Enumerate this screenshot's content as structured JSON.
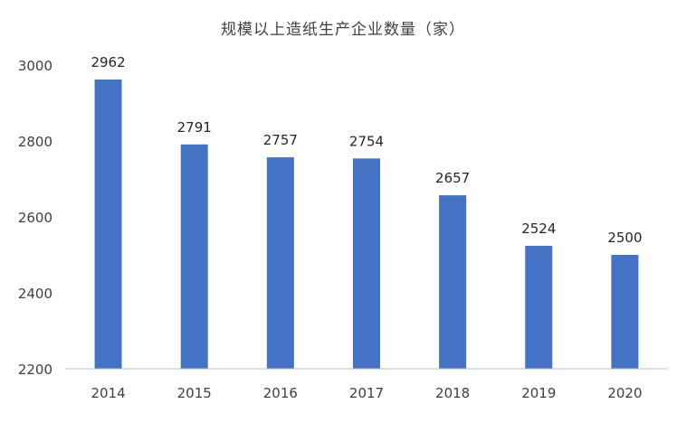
{
  "chart_data": {
    "type": "bar",
    "title": "规模以上造纸生产企业数量（家）",
    "categories": [
      "2014",
      "2015",
      "2016",
      "2017",
      "2018",
      "2019",
      "2020"
    ],
    "values": [
      2962,
      2791,
      2757,
      2754,
      2657,
      2524,
      2500
    ],
    "ylim": [
      2200,
      3000
    ],
    "yticks": [
      "2200",
      "2400",
      "2600",
      "2800",
      "3000"
    ],
    "xlabel": "",
    "ylabel": "",
    "grid": false,
    "legend": "none",
    "bar_color": "#4472C4",
    "axis_color": "#bfbfbf"
  }
}
